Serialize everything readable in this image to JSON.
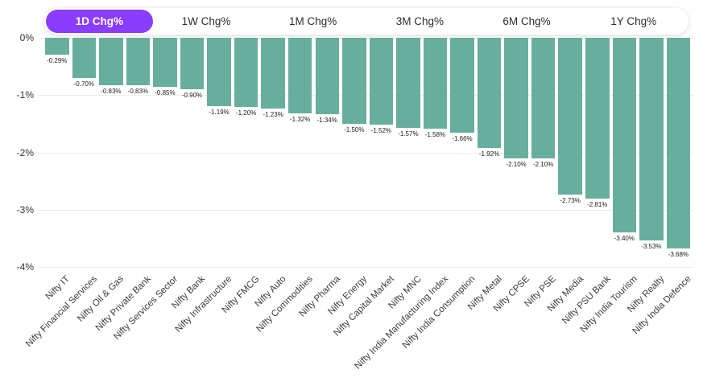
{
  "tabs": {
    "items": [
      {
        "label": "1D Chg%",
        "selected": true
      },
      {
        "label": "1W Chg%",
        "selected": false
      },
      {
        "label": "1M Chg%",
        "selected": false
      },
      {
        "label": "3M Chg%",
        "selected": false
      },
      {
        "label": "6M Chg%",
        "selected": false
      },
      {
        "label": "1Y Chg%",
        "selected": false
      }
    ]
  },
  "colors": {
    "accent_purple": "#8b3dff",
    "bar_teal": "#68ae9d",
    "grid_line": "#ececec"
  },
  "chart_data": {
    "type": "bar",
    "title": "",
    "xlabel": "",
    "ylabel": "",
    "categories": [
      "Nifty IT",
      "Nifty Financial Services",
      "Nifty Oil & Gas",
      "Nifty Private Bank",
      "Nifty Services Sector",
      "Nifty Bank",
      "Nifty Infrastructure",
      "Nifty FMCG",
      "Nifty Auto",
      "Nifty Commodities",
      "Nifty Pharma",
      "Nifty Energy",
      "Nifty Capital Market",
      "Nifty MNC",
      "Nifty India Manufacturing Index",
      "Nifty India Consumption",
      "Nifty Metal",
      "Nifty CPSE",
      "Nifty PSE",
      "Nifty Media",
      "Nifty PSU Bank",
      "Nifty India Tourism",
      "Nifty Realty",
      "Nifty India Defence"
    ],
    "values": [
      -0.29,
      -0.7,
      -0.83,
      -0.83,
      -0.85,
      -0.9,
      -1.19,
      -1.2,
      -1.23,
      -1.32,
      -1.34,
      -1.5,
      -1.52,
      -1.57,
      -1.58,
      -1.66,
      -1.92,
      -2.1,
      -2.1,
      -2.73,
      -2.81,
      -3.4,
      -3.53,
      -3.68
    ],
    "value_labels": [
      "-0.29%",
      "-0.70%",
      "-0.83%",
      "-0.83%",
      "-0.85%",
      "-0.90%",
      "-1.19%",
      "-1.20%",
      "-1.23%",
      "-1.32%",
      "-1.34%",
      "-1.50%",
      "-1.52%",
      "-1.57%",
      "-1.58%",
      "-1.66%",
      "-1.92%",
      "-2.10%",
      "-2.10%",
      "-2.73%",
      "-2.81%",
      "-3.40%",
      "-3.53%",
      "-3.68%"
    ],
    "yticks": [
      "0%",
      "-1%",
      "-2%",
      "-3%",
      "-4%"
    ],
    "ylim": [
      -4,
      0
    ],
    "grid": true,
    "legend": "none",
    "bar_color": "#68ae9d"
  }
}
